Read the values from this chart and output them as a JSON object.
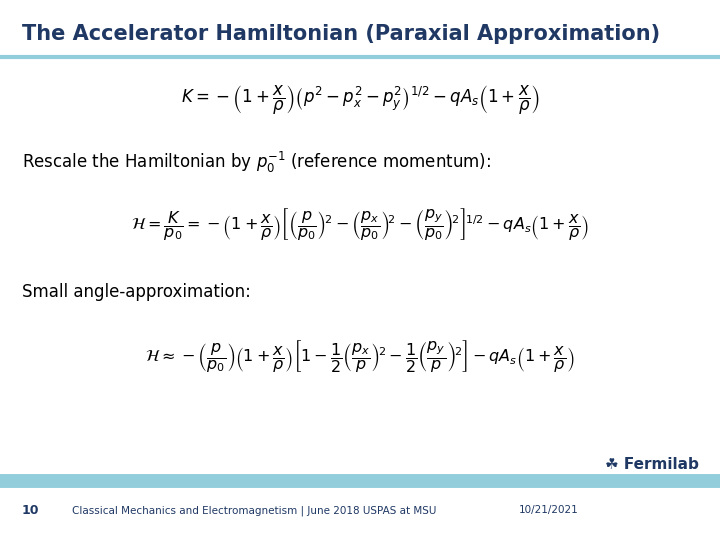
{
  "title": "The Accelerator Hamiltonian (Paraxial Approximation)",
  "title_color": "#1F3864",
  "title_fontsize": 15,
  "bg_color": "#ffffff",
  "header_line_color": "#92CDDC",
  "footer_line_color": "#92CDDC",
  "text_rescale": "Rescale the Hamiltonian by $p_0^{-1}$ (reference momentum):",
  "text_small_angle": "Small angle-approximation:",
  "eq1": "$K = -\\left(1 + \\dfrac{x}{\\rho}\\right)\\left(p^2 - p_x^2 - p_y^2\\right)^{1/2} - qA_s\\left(1 + \\dfrac{x}{\\rho}\\right)$",
  "eq2": "$\\mathcal{H} = \\dfrac{K}{p_0} = -\\left(1 + \\dfrac{x}{\\rho}\\right)\\left[\\left(\\dfrac{p}{p_0}\\right)^{\\!2} - \\left(\\dfrac{p_x}{p_0}\\right)^{\\!2} - \\left(\\dfrac{p_y}{p_0}\\right)^{\\!2}\\right]^{\\!1/2} - qA_s\\left(1 + \\dfrac{x}{\\rho}\\right)$",
  "eq3": "$\\mathcal{H} \\approx -\\left(\\dfrac{p}{p_0}\\right)\\left(1 + \\dfrac{x}{\\rho}\\right)\\left[1 - \\dfrac{1}{2}\\left(\\dfrac{p_x}{p}\\right)^{\\!2} - \\dfrac{1}{2}\\left(\\dfrac{p_y}{p}\\right)^{\\!2}\\right] - qA_s\\left(1 + \\dfrac{x}{\\rho}\\right)$",
  "footer_left_num": "10",
  "footer_center": "Classical Mechanics and Electromagnetism | June 2018 USPAS at MSU",
  "footer_right": "10/21/2021",
  "footer_color": "#1F3864",
  "fermilab_text": "☘ Fermilab",
  "fermilab_color": "#1F3864",
  "eq_fontsize": 12,
  "text_fontsize": 12
}
